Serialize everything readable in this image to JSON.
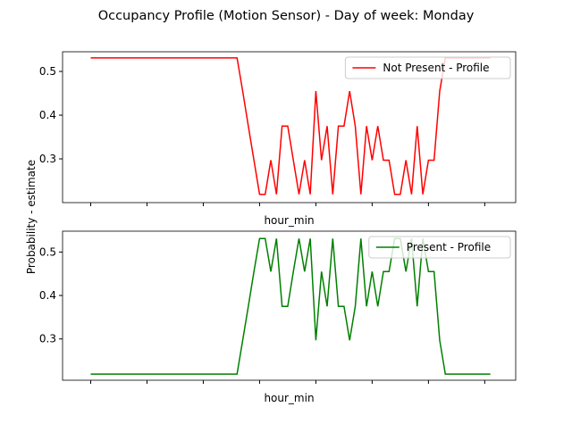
{
  "title": "Occupancy Profile (Motion Sensor) - Day of week: Monday",
  "ylabel": "Probability - estimate",
  "chart_data": [
    {
      "type": "line",
      "xlabel": "hour_min",
      "x": [
        0,
        2,
        4,
        6,
        8,
        10,
        12,
        14,
        16,
        18,
        20,
        22,
        24,
        26,
        28,
        30,
        32,
        34,
        36,
        38,
        40,
        42,
        44,
        46,
        48,
        50,
        52,
        54,
        56,
        58,
        60,
        62,
        64,
        66,
        68,
        70,
        72,
        74,
        76,
        78,
        80,
        82,
        84,
        86,
        88,
        90,
        92,
        94,
        96,
        98,
        100,
        102,
        104,
        106,
        108,
        110,
        112,
        114,
        116,
        118,
        120,
        122,
        124,
        126,
        128,
        130,
        132,
        134,
        136,
        138,
        140,
        142
      ],
      "series": [
        {
          "name": "Not Present - Profile",
          "color": "#ff0000",
          "values": [
            0.531,
            0.531,
            0.531,
            0.531,
            0.531,
            0.531,
            0.531,
            0.531,
            0.531,
            0.531,
            0.531,
            0.531,
            0.531,
            0.531,
            0.531,
            0.531,
            0.531,
            0.531,
            0.531,
            0.531,
            0.531,
            0.531,
            0.531,
            0.531,
            0.531,
            0.531,
            0.531,
            0.455,
            0.375,
            0.297,
            0.219,
            0.219,
            0.297,
            0.219,
            0.375,
            0.375,
            0.297,
            0.219,
            0.297,
            0.219,
            0.455,
            0.297,
            0.375,
            0.219,
            0.375,
            0.375,
            0.455,
            0.375,
            0.219,
            0.375,
            0.297,
            0.375,
            0.297,
            0.297,
            0.219,
            0.219,
            0.297,
            0.219,
            0.375,
            0.219,
            0.297,
            0.297,
            0.455,
            0.531,
            0.531,
            0.531,
            0.531,
            0.531,
            0.531,
            0.531,
            0.531,
            0.531
          ]
        }
      ],
      "xlim": [
        -10,
        151
      ],
      "xticks": [
        0,
        20,
        40,
        60,
        80,
        100,
        120,
        140
      ],
      "ylim": [
        0.2,
        0.545
      ],
      "yticks": [
        0.3,
        0.4,
        0.5
      ],
      "legend": "upper right"
    },
    {
      "type": "line",
      "xlabel": "hour_min",
      "x": [
        0,
        2,
        4,
        6,
        8,
        10,
        12,
        14,
        16,
        18,
        20,
        22,
        24,
        26,
        28,
        30,
        32,
        34,
        36,
        38,
        40,
        42,
        44,
        46,
        48,
        50,
        52,
        54,
        56,
        58,
        60,
        62,
        64,
        66,
        68,
        70,
        72,
        74,
        76,
        78,
        80,
        82,
        84,
        86,
        88,
        90,
        92,
        94,
        96,
        98,
        100,
        102,
        104,
        106,
        108,
        110,
        112,
        114,
        116,
        118,
        120,
        122,
        124,
        126,
        128,
        130,
        132,
        134,
        136,
        138,
        140,
        142
      ],
      "series": [
        {
          "name": "Present - Profile",
          "color": "#008000",
          "values": [
            0.219,
            0.219,
            0.219,
            0.219,
            0.219,
            0.219,
            0.219,
            0.219,
            0.219,
            0.219,
            0.219,
            0.219,
            0.219,
            0.219,
            0.219,
            0.219,
            0.219,
            0.219,
            0.219,
            0.219,
            0.219,
            0.219,
            0.219,
            0.219,
            0.219,
            0.219,
            0.219,
            0.297,
            0.375,
            0.455,
            0.531,
            0.531,
            0.455,
            0.531,
            0.375,
            0.375,
            0.455,
            0.531,
            0.455,
            0.531,
            0.297,
            0.455,
            0.375,
            0.531,
            0.375,
            0.375,
            0.297,
            0.375,
            0.531,
            0.375,
            0.455,
            0.375,
            0.455,
            0.455,
            0.531,
            0.531,
            0.455,
            0.531,
            0.375,
            0.531,
            0.455,
            0.455,
            0.297,
            0.219,
            0.219,
            0.219,
            0.219,
            0.219,
            0.219,
            0.219,
            0.219,
            0.219
          ]
        }
      ],
      "xlim": [
        -10,
        151
      ],
      "xticks": [
        0,
        20,
        40,
        60,
        80,
        100,
        120,
        140
      ],
      "ylim": [
        0.205,
        0.548
      ],
      "yticks": [
        0.3,
        0.4,
        0.5
      ],
      "legend": "upper right"
    }
  ]
}
